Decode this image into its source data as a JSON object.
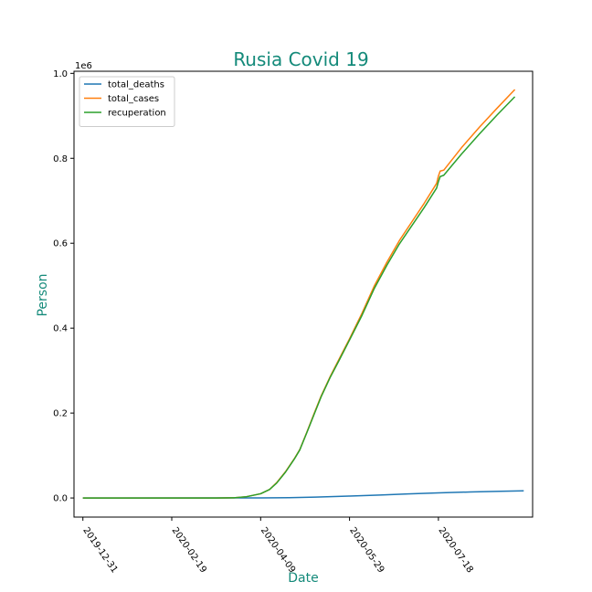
{
  "chart_data": {
    "type": "line",
    "title": "Rusia Covid 19",
    "xlabel": "Date",
    "ylabel": "Person",
    "y_offset_label": "1e6",
    "x_tick_labels": [
      "2019-12-31",
      "2020-02-19",
      "2020-04-09",
      "2020-05-29",
      "2020-07-18"
    ],
    "xlim": [
      "2019-12-26",
      "2020-09-09"
    ],
    "ylim": [
      -0.045,
      1.005
    ],
    "y_ticks": [
      0.0,
      0.2,
      0.4,
      0.6,
      0.8,
      1.0
    ],
    "y_tick_labels": [
      "0.0",
      "0.2",
      "0.4",
      "0.6",
      "0.8",
      "1.0"
    ],
    "y_scale": 1000000,
    "grid": false,
    "legend_position": "upper-left",
    "series": [
      {
        "name": "total_deaths",
        "color": "#1f77b4",
        "points": [
          {
            "x": "2019-12-31",
            "y": 0
          },
          {
            "x": "2020-04-09",
            "y": 0.0001
          },
          {
            "x": "2020-04-25",
            "y": 0.0006
          },
          {
            "x": "2020-05-10",
            "y": 0.002
          },
          {
            "x": "2020-05-29",
            "y": 0.0045
          },
          {
            "x": "2020-06-15",
            "y": 0.007
          },
          {
            "x": "2020-07-01",
            "y": 0.0096
          },
          {
            "x": "2020-07-18",
            "y": 0.012
          },
          {
            "x": "2020-08-05",
            "y": 0.0142
          },
          {
            "x": "2020-08-22",
            "y": 0.0158
          },
          {
            "x": "2020-09-04",
            "y": 0.0168
          }
        ]
      },
      {
        "name": "total_cases",
        "color": "#ff7f0e",
        "points": [
          {
            "x": "2019-12-31",
            "y": 0
          },
          {
            "x": "2020-03-15",
            "y": 0
          },
          {
            "x": "2020-03-25",
            "y": 0.0005
          },
          {
            "x": "2020-04-01",
            "y": 0.003
          },
          {
            "x": "2020-04-09",
            "y": 0.01
          },
          {
            "x": "2020-04-14",
            "y": 0.02
          },
          {
            "x": "2020-04-18",
            "y": 0.036
          },
          {
            "x": "2020-04-23",
            "y": 0.062
          },
          {
            "x": "2020-04-28",
            "y": 0.093
          },
          {
            "x": "2020-05-01",
            "y": 0.114
          },
          {
            "x": "2020-05-05",
            "y": 0.155
          },
          {
            "x": "2020-05-09",
            "y": 0.198
          },
          {
            "x": "2020-05-13",
            "y": 0.24
          },
          {
            "x": "2020-05-18",
            "y": 0.285
          },
          {
            "x": "2020-05-23",
            "y": 0.326
          },
          {
            "x": "2020-05-29",
            "y": 0.375
          },
          {
            "x": "2020-06-05",
            "y": 0.435
          },
          {
            "x": "2020-06-12",
            "y": 0.5
          },
          {
            "x": "2020-06-19",
            "y": 0.555
          },
          {
            "x": "2020-06-26",
            "y": 0.606
          },
          {
            "x": "2020-07-03",
            "y": 0.65
          },
          {
            "x": "2020-07-10",
            "y": 0.694
          },
          {
            "x": "2020-07-17",
            "y": 0.741
          },
          {
            "x": "2020-07-18",
            "y": 0.758
          },
          {
            "x": "2020-07-19",
            "y": 0.77
          },
          {
            "x": "2020-07-21",
            "y": 0.772
          },
          {
            "x": "2020-07-31",
            "y": 0.825
          },
          {
            "x": "2020-08-10",
            "y": 0.873
          },
          {
            "x": "2020-08-20",
            "y": 0.918
          },
          {
            "x": "2020-08-30",
            "y": 0.962
          }
        ]
      },
      {
        "name": "recuperation",
        "color": "#2ca02c",
        "points": [
          {
            "x": "2019-12-31",
            "y": 0
          },
          {
            "x": "2020-03-15",
            "y": 0
          },
          {
            "x": "2020-03-25",
            "y": 0.0005
          },
          {
            "x": "2020-04-01",
            "y": 0.003
          },
          {
            "x": "2020-04-09",
            "y": 0.01
          },
          {
            "x": "2020-04-14",
            "y": 0.02
          },
          {
            "x": "2020-04-18",
            "y": 0.035
          },
          {
            "x": "2020-04-23",
            "y": 0.061
          },
          {
            "x": "2020-04-28",
            "y": 0.092
          },
          {
            "x": "2020-05-01",
            "y": 0.113
          },
          {
            "x": "2020-05-05",
            "y": 0.154
          },
          {
            "x": "2020-05-09",
            "y": 0.196
          },
          {
            "x": "2020-05-13",
            "y": 0.238
          },
          {
            "x": "2020-05-18",
            "y": 0.283
          },
          {
            "x": "2020-05-23",
            "y": 0.323
          },
          {
            "x": "2020-05-29",
            "y": 0.372
          },
          {
            "x": "2020-06-05",
            "y": 0.43
          },
          {
            "x": "2020-06-12",
            "y": 0.494
          },
          {
            "x": "2020-06-19",
            "y": 0.548
          },
          {
            "x": "2020-06-26",
            "y": 0.598
          },
          {
            "x": "2020-07-03",
            "y": 0.641
          },
          {
            "x": "2020-07-10",
            "y": 0.684
          },
          {
            "x": "2020-07-17",
            "y": 0.73
          },
          {
            "x": "2020-07-18",
            "y": 0.745
          },
          {
            "x": "2020-07-19",
            "y": 0.757
          },
          {
            "x": "2020-07-21",
            "y": 0.76
          },
          {
            "x": "2020-07-31",
            "y": 0.81
          },
          {
            "x": "2020-08-10",
            "y": 0.857
          },
          {
            "x": "2020-08-20",
            "y": 0.902
          },
          {
            "x": "2020-08-30",
            "y": 0.945
          }
        ]
      }
    ],
    "colors": {
      "title": "#148a7a",
      "axis_title": "#148a7a",
      "axes": "#000000"
    }
  }
}
